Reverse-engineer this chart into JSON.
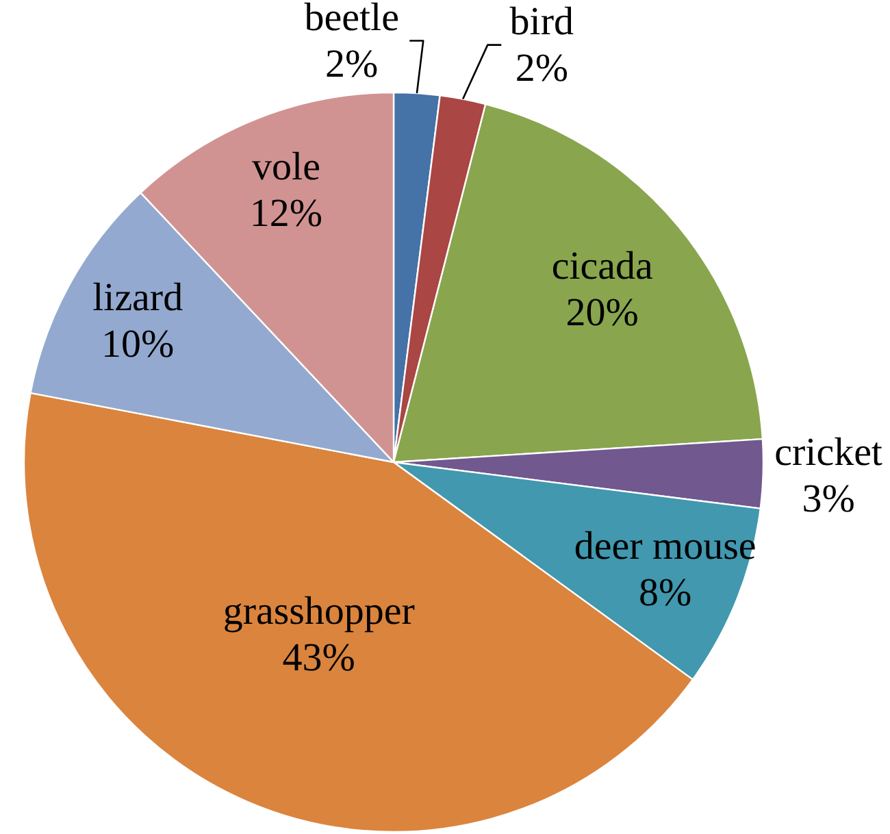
{
  "chart_data": {
    "type": "pie",
    "categories": [
      "beetle",
      "bird",
      "cicada",
      "cricket",
      "deer mouse",
      "grasshopper",
      "lizard",
      "vole"
    ],
    "values": [
      2,
      2,
      20,
      3,
      8,
      43,
      10,
      12
    ],
    "value_labels": [
      "2%",
      "2%",
      "20%",
      "3%",
      "8%",
      "43%",
      "10%",
      "12%"
    ],
    "colors": [
      "#4572a7",
      "#aa4643",
      "#89a54e",
      "#71588f",
      "#4198af",
      "#db843d",
      "#93a9cf",
      "#d19392"
    ]
  }
}
